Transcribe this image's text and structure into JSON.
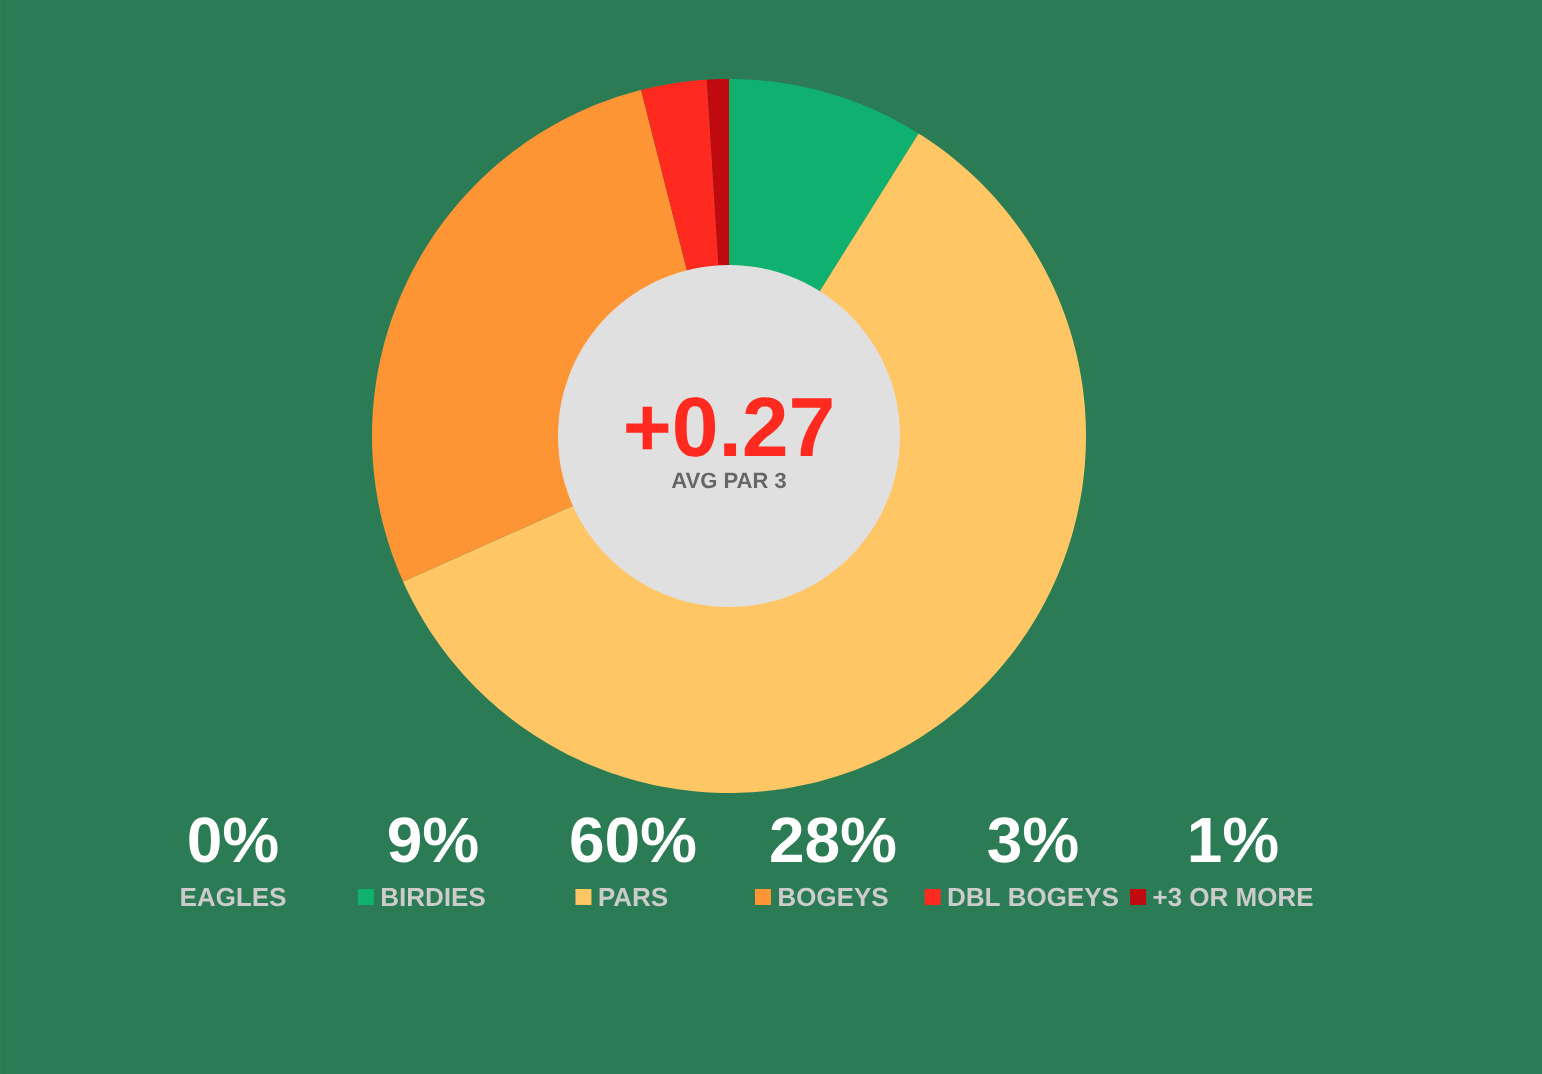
{
  "chart_data": {
    "type": "donut",
    "categories": [
      "EAGLES",
      "BIRDIES",
      "PARS",
      "BOGEYS",
      "DBL BOGEYS",
      "+3 OR MORE"
    ],
    "values": [
      0,
      9,
      60,
      28,
      3,
      1
    ],
    "colors": [
      null,
      "#10b16e",
      "#fec664",
      "#fe9535",
      "#fe2a20",
      "#c10a10"
    ],
    "value_labels": [
      "0%",
      "9%",
      "60%",
      "28%",
      "3%",
      "1%"
    ],
    "legend": "bottom",
    "annotations": [
      "+0.27",
      "AVG PAR 3"
    ]
  }
}
